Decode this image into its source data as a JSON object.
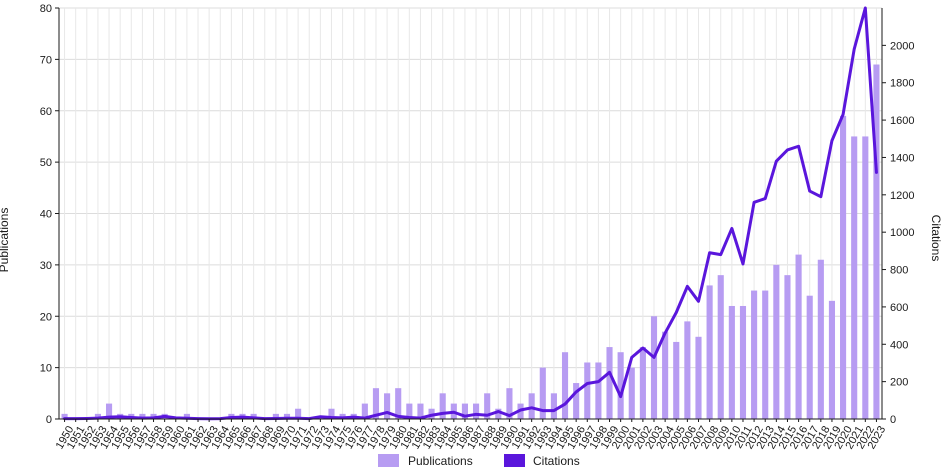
{
  "chart_data": {
    "type": "bar",
    "title": "",
    "xlabel": "",
    "ylabel": "Publications",
    "y2label": "Citations",
    "ylim": [
      0,
      80
    ],
    "y2lim": [
      0,
      2200
    ],
    "yticks": [
      0,
      10,
      20,
      30,
      40,
      50,
      60,
      70,
      80
    ],
    "y2ticks": [
      0,
      200,
      400,
      600,
      800,
      1000,
      1200,
      1400,
      1600,
      1800,
      2000
    ],
    "grid": true,
    "legend_position": "bottom-center",
    "categories": [
      "1950",
      "1951",
      "1952",
      "1953",
      "1954",
      "1955",
      "1956",
      "1957",
      "1958",
      "1959",
      "1960",
      "1961",
      "1962",
      "1963",
      "1964",
      "1965",
      "1966",
      "1967",
      "1968",
      "1969",
      "1970",
      "1971",
      "1972",
      "1973",
      "1974",
      "1975",
      "1976",
      "1977",
      "1978",
      "1979",
      "1980",
      "1981",
      "1982",
      "1983",
      "1984",
      "1985",
      "1986",
      "1987",
      "1988",
      "1989",
      "1990",
      "1991",
      "1992",
      "1993",
      "1994",
      "1995",
      "1996",
      "1997",
      "1998",
      "1999",
      "2000",
      "2001",
      "2002",
      "2003",
      "2004",
      "2005",
      "2006",
      "2007",
      "2008",
      "2009",
      "2010",
      "2011",
      "2012",
      "2013",
      "2014",
      "2015",
      "2016",
      "2017",
      "2018",
      "2019",
      "2020",
      "2021",
      "2022",
      "2023"
    ],
    "series": [
      {
        "name": "Publications",
        "type": "bar",
        "axis": "left",
        "color": "#b79cf2",
        "values": [
          1,
          0,
          0,
          1,
          3,
          1,
          1,
          1,
          1,
          1,
          0,
          1,
          0,
          0,
          0,
          1,
          1,
          1,
          0,
          1,
          1,
          2,
          0,
          0,
          2,
          1,
          1,
          3,
          6,
          5,
          6,
          3,
          3,
          2,
          5,
          3,
          3,
          3,
          5,
          2,
          6,
          3,
          5,
          10,
          5,
          13,
          7,
          11,
          11,
          14,
          13,
          10,
          14,
          20,
          17,
          15,
          19,
          16,
          26,
          28,
          22,
          22,
          25,
          25,
          30,
          28,
          32,
          24,
          31,
          23,
          59,
          55,
          55,
          69
        ]
      },
      {
        "name": "Citations",
        "type": "line",
        "axis": "right",
        "color": "#5a16dc",
        "values": [
          2,
          2,
          3,
          5,
          10,
          12,
          8,
          5,
          6,
          14,
          6,
          4,
          2,
          1,
          2,
          8,
          10,
          6,
          2,
          3,
          4,
          4,
          2,
          12,
          8,
          6,
          10,
          5,
          20,
          35,
          14,
          8,
          5,
          20,
          30,
          36,
          15,
          25,
          20,
          40,
          18,
          48,
          60,
          45,
          45,
          80,
          145,
          190,
          200,
          250,
          120,
          330,
          380,
          330,
          460,
          570,
          710,
          630,
          890,
          880,
          1020,
          830,
          1160,
          1180,
          1380,
          1440,
          1460,
          1220,
          1190,
          1490,
          1630,
          1980,
          2200,
          1320
        ]
      }
    ]
  }
}
